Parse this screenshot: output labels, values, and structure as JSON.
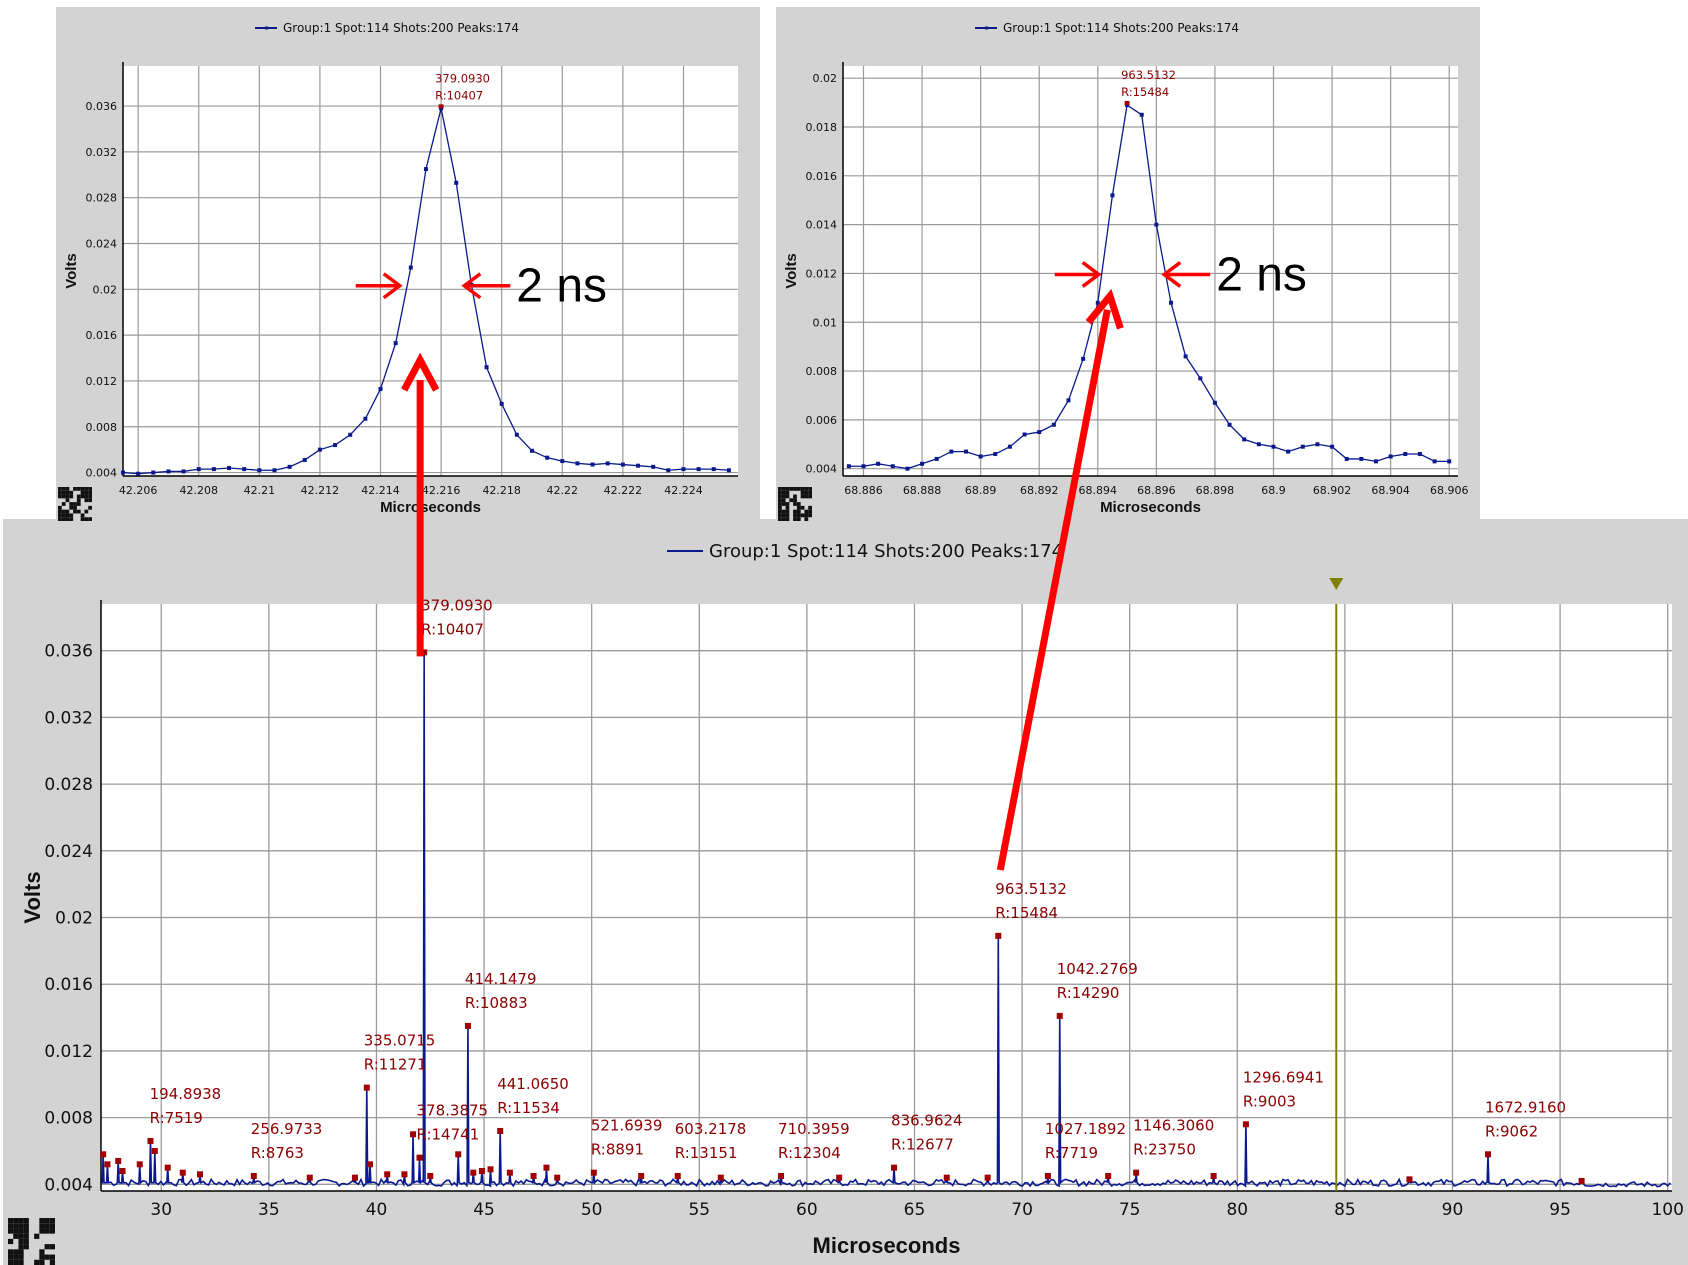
{
  "chart_data": [
    {
      "id": "main",
      "type": "line",
      "legend": "Group:1 Spot:114 Shots:200 Peaks:174",
      "xlabel": "Microseconds",
      "ylabel": "Volts",
      "xlim": [
        27.2,
        100.2
      ],
      "ylim": [
        0.0036,
        0.0388
      ],
      "x_ticks": [
        30,
        35,
        40,
        45,
        50,
        55,
        60,
        65,
        70,
        75,
        80,
        85,
        90,
        95,
        100
      ],
      "y_ticks": [
        0.004,
        0.008,
        0.012,
        0.016,
        0.02,
        0.024,
        0.028,
        0.032,
        0.036
      ],
      "x_tick_labels": [
        "30",
        "35",
        "40",
        "45",
        "50",
        "55",
        "60",
        "65",
        "70",
        "75",
        "80",
        "85",
        "90",
        "95",
        "100"
      ],
      "y_tick_labels": [
        "0.004",
        "0.008",
        "0.012",
        "0.016",
        "0.02",
        "0.024",
        "0.028",
        "0.032",
        "0.036"
      ],
      "baseline": 0.0041,
      "marker_line_x": 84.6,
      "peaks": [
        {
          "x": 27.3,
          "y": 0.0058
        },
        {
          "x": 27.5,
          "y": 0.0052
        },
        {
          "x": 28.0,
          "y": 0.0054
        },
        {
          "x": 28.2,
          "y": 0.0048
        },
        {
          "x": 29.0,
          "y": 0.0052
        },
        {
          "x": 29.5,
          "y": 0.0066
        },
        {
          "x": 29.7,
          "y": 0.006
        },
        {
          "x": 30.3,
          "y": 0.005
        },
        {
          "x": 31.0,
          "y": 0.0047
        },
        {
          "x": 31.8,
          "y": 0.0046
        },
        {
          "x": 34.3,
          "y": 0.0045
        },
        {
          "x": 36.9,
          "y": 0.0044
        },
        {
          "x": 39.0,
          "y": 0.0044
        },
        {
          "x": 39.55,
          "y": 0.0098
        },
        {
          "x": 39.7,
          "y": 0.0052
        },
        {
          "x": 40.5,
          "y": 0.0046
        },
        {
          "x": 41.3,
          "y": 0.0046
        },
        {
          "x": 41.7,
          "y": 0.007
        },
        {
          "x": 42.0,
          "y": 0.0056
        },
        {
          "x": 42.216,
          "y": 0.0359
        },
        {
          "x": 42.5,
          "y": 0.0045
        },
        {
          "x": 43.8,
          "y": 0.0058
        },
        {
          "x": 44.25,
          "y": 0.0135
        },
        {
          "x": 44.5,
          "y": 0.0047
        },
        {
          "x": 44.9,
          "y": 0.0048
        },
        {
          "x": 45.3,
          "y": 0.0049
        },
        {
          "x": 45.75,
          "y": 0.0072
        },
        {
          "x": 46.2,
          "y": 0.0047
        },
        {
          "x": 47.3,
          "y": 0.0045
        },
        {
          "x": 47.9,
          "y": 0.005
        },
        {
          "x": 48.4,
          "y": 0.0044
        },
        {
          "x": 50.1,
          "y": 0.0047
        },
        {
          "x": 52.3,
          "y": 0.0045
        },
        {
          "x": 54.0,
          "y": 0.0045
        },
        {
          "x": 56.0,
          "y": 0.0044
        },
        {
          "x": 58.8,
          "y": 0.0045
        },
        {
          "x": 61.5,
          "y": 0.0044
        },
        {
          "x": 64.05,
          "y": 0.005
        },
        {
          "x": 66.5,
          "y": 0.0044
        },
        {
          "x": 68.4,
          "y": 0.0044
        },
        {
          "x": 68.895,
          "y": 0.0189
        },
        {
          "x": 71.2,
          "y": 0.0045
        },
        {
          "x": 71.75,
          "y": 0.0141
        },
        {
          "x": 74.0,
          "y": 0.0045
        },
        {
          "x": 75.3,
          "y": 0.0047
        },
        {
          "x": 78.9,
          "y": 0.0045
        },
        {
          "x": 80.4,
          "y": 0.0076
        },
        {
          "x": 88.0,
          "y": 0.0043
        },
        {
          "x": 91.65,
          "y": 0.0058
        },
        {
          "x": 96.0,
          "y": 0.0042
        }
      ],
      "labels": [
        {
          "x": 29.6,
          "y": 0.0066,
          "mz": "194.8938",
          "res": "R:7519"
        },
        {
          "x": 34.3,
          "y": 0.0045,
          "mz": "256.9733",
          "res": "R:8763"
        },
        {
          "x": 39.55,
          "y": 0.0098,
          "mz": "335.0715",
          "res": "R:11271"
        },
        {
          "x": 42.216,
          "y": 0.0359,
          "mz": "379.0930",
          "res": "R:10407"
        },
        {
          "x": 42.0,
          "y": 0.0056,
          "mz": "378.3875",
          "res": "R:14741"
        },
        {
          "x": 44.25,
          "y": 0.0135,
          "mz": "414.1479",
          "res": "R:10883"
        },
        {
          "x": 45.75,
          "y": 0.0072,
          "mz": "441.0650",
          "res": "R:11534"
        },
        {
          "x": 50.1,
          "y": 0.0047,
          "mz": "521.6939",
          "res": "R:8891"
        },
        {
          "x": 54.0,
          "y": 0.0045,
          "mz": "603.2178",
          "res": "R:13151"
        },
        {
          "x": 58.8,
          "y": 0.0045,
          "mz": "710.3959",
          "res": "R:12304"
        },
        {
          "x": 64.05,
          "y": 0.005,
          "mz": "836.9624",
          "res": "R:12677"
        },
        {
          "x": 68.895,
          "y": 0.0189,
          "mz": "963.5132",
          "res": "R:15484"
        },
        {
          "x": 71.75,
          "y": 0.0141,
          "mz": "1042.2769",
          "res": "R:14290"
        },
        {
          "x": 71.2,
          "y": 0.0045,
          "mz": "1027.1892",
          "res": "R:7719"
        },
        {
          "x": 75.3,
          "y": 0.0047,
          "mz": "1146.3060",
          "res": "R:23750"
        },
        {
          "x": 80.4,
          "y": 0.0076,
          "mz": "1296.6941",
          "res": "R:9003"
        },
        {
          "x": 91.65,
          "y": 0.0058,
          "mz": "1672.9160",
          "res": "R:9062"
        }
      ]
    },
    {
      "id": "zoom1",
      "type": "line",
      "legend": "Group:1 Spot:114 Shots:200 Peaks:174",
      "xlabel": "Microseconds",
      "ylabel": "Volts",
      "xlim": [
        42.2055,
        42.2258
      ],
      "ylim": [
        0.0037,
        0.0395
      ],
      "x_ticks": [
        42.206,
        42.208,
        42.21,
        42.212,
        42.214,
        42.216,
        42.218,
        42.22,
        42.222,
        42.224
      ],
      "x_tick_labels": [
        "42.206",
        "42.208",
        "42.21",
        "42.212",
        "42.214",
        "42.216",
        "42.218",
        "42.22",
        "42.222",
        "42.224"
      ],
      "y_ticks": [
        0.004,
        0.008,
        0.012,
        0.016,
        0.02,
        0.024,
        0.028,
        0.032,
        0.036
      ],
      "y_tick_labels": [
        "0.004",
        "0.008",
        "0.012",
        "0.016",
        "0.02",
        "0.024",
        "0.028",
        "0.032",
        "0.036"
      ],
      "x": [
        42.2055,
        42.206,
        42.2065,
        42.207,
        42.2075,
        42.208,
        42.2085,
        42.209,
        42.2095,
        42.21,
        42.2105,
        42.211,
        42.2115,
        42.212,
        42.2125,
        42.213,
        42.2135,
        42.214,
        42.2145,
        42.215,
        42.2155,
        42.216,
        42.2165,
        42.217,
        42.2175,
        42.218,
        42.2185,
        42.219,
        42.2195,
        42.22,
        42.2205,
        42.221,
        42.2215,
        42.222,
        42.2225,
        42.223,
        42.2235,
        42.224,
        42.2245,
        42.225,
        42.2255
      ],
      "y": [
        0.004,
        0.0039,
        0.004,
        0.0041,
        0.0041,
        0.0043,
        0.0043,
        0.0044,
        0.0043,
        0.0042,
        0.0042,
        0.0045,
        0.0051,
        0.006,
        0.0064,
        0.0073,
        0.0087,
        0.0113,
        0.0153,
        0.0219,
        0.0305,
        0.0358,
        0.0293,
        0.0204,
        0.0132,
        0.01,
        0.0073,
        0.0059,
        0.0053,
        0.005,
        0.0048,
        0.0047,
        0.0048,
        0.0047,
        0.0046,
        0.0045,
        0.0042,
        0.0043,
        0.0043,
        0.0043,
        0.0042
      ],
      "peak_label": {
        "x": 42.216,
        "y": 0.0358,
        "mz": "379.0930",
        "res": "R:10407"
      },
      "fwhm_label": "2 ns",
      "fwhm_y": 0.0204,
      "fwhm_left_x": 42.2147,
      "fwhm_right_x": 42.2167
    },
    {
      "id": "zoom2",
      "type": "line",
      "legend": "Group:1 Spot:114 Shots:200 Peaks:174",
      "xlabel": "Microseconds",
      "ylabel": "Volts",
      "xlim": [
        68.8853,
        68.9063
      ],
      "ylim": [
        0.0037,
        0.0205
      ],
      "x_ticks": [
        68.886,
        68.888,
        68.89,
        68.892,
        68.894,
        68.896,
        68.898,
        68.9,
        68.902,
        68.904,
        68.906
      ],
      "x_tick_labels": [
        "68.886",
        "68.888",
        "68.89",
        "68.892",
        "68.894",
        "68.896",
        "68.898",
        "68.9",
        "68.902",
        "68.904",
        "68.906"
      ],
      "y_ticks": [
        0.004,
        0.006,
        0.008,
        0.01,
        0.012,
        0.014,
        0.016,
        0.018,
        0.02
      ],
      "y_tick_labels": [
        "0.004",
        "0.006",
        "0.008",
        "0.01",
        "0.012",
        "0.014",
        "0.016",
        "0.018",
        "0.02"
      ],
      "x": [
        68.8855,
        68.886,
        68.8865,
        68.887,
        68.8875,
        68.888,
        68.8885,
        68.889,
        68.8895,
        68.89,
        68.8905,
        68.891,
        68.8915,
        68.892,
        68.8925,
        68.893,
        68.8935,
        68.894,
        68.8945,
        68.895,
        68.8955,
        68.896,
        68.8965,
        68.897,
        68.8975,
        68.898,
        68.8985,
        68.899,
        68.8995,
        68.9,
        68.9005,
        68.901,
        68.9015,
        68.902,
        68.9025,
        68.903,
        68.9035,
        68.904,
        68.9045,
        68.905,
        68.9055,
        68.906
      ],
      "y": [
        0.0041,
        0.0041,
        0.0042,
        0.0041,
        0.004,
        0.0042,
        0.0044,
        0.0047,
        0.0047,
        0.0045,
        0.0046,
        0.0049,
        0.0054,
        0.0055,
        0.0058,
        0.0068,
        0.0085,
        0.0108,
        0.0152,
        0.0189,
        0.0185,
        0.014,
        0.0108,
        0.0086,
        0.0077,
        0.0067,
        0.0058,
        0.0052,
        0.005,
        0.0049,
        0.0047,
        0.0049,
        0.005,
        0.0049,
        0.0044,
        0.0044,
        0.0043,
        0.0045,
        0.0046,
        0.0046,
        0.0043,
        0.0043
      ],
      "peak_label": {
        "x": 68.895,
        "y": 0.0189,
        "mz": "963.5132",
        "res": "R:15484"
      },
      "fwhm_label": "2 ns",
      "fwhm_y": 0.012,
      "fwhm_left_x": 68.8941,
      "fwhm_right_x": 68.8962
    }
  ],
  "colors": {
    "panel_bg": "#d3d3d3",
    "plot_bg": "#ffffff",
    "grid": "#9a9a9a",
    "series": "#0a1a8c",
    "peak_label": "#8b0000",
    "peak_marker": "#a00000",
    "arrow": "#ff0000",
    "marker_line": "#808000"
  }
}
